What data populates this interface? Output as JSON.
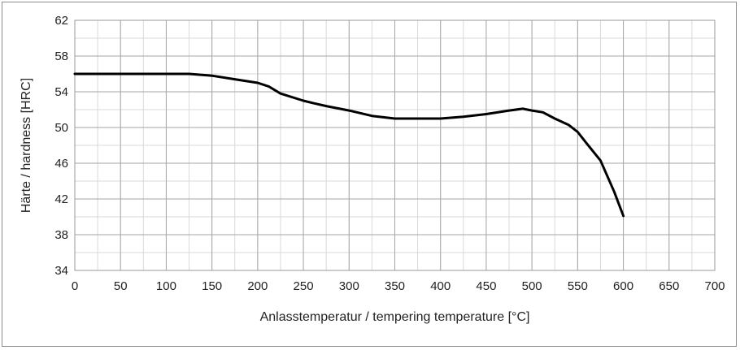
{
  "chart_data": {
    "type": "line",
    "title": "",
    "xlabel": "Anlasstemperatur / tempering temperature [°C]",
    "ylabel": "Härte / hardness [HRC]",
    "xlim": [
      0,
      700
    ],
    "ylim": [
      34,
      62
    ],
    "xticks": [
      0,
      50,
      100,
      150,
      200,
      250,
      300,
      350,
      400,
      450,
      500,
      550,
      600,
      650,
      700
    ],
    "yticks": [
      34,
      38,
      42,
      46,
      50,
      54,
      58,
      62
    ],
    "xtick_labels": [
      "0",
      "50",
      "100",
      "150",
      "200",
      "250",
      "300",
      "350",
      "400",
      "450",
      "500",
      "550",
      "600",
      "650",
      "700"
    ],
    "ytick_labels": [
      "34",
      "38",
      "42",
      "46",
      "50",
      "54",
      "58",
      "62"
    ],
    "x_minor_step": 25,
    "y_minor_step": 2,
    "grid": true,
    "line_color": "#000000",
    "series": [
      {
        "x": [
          0,
          50,
          100,
          125,
          150,
          175,
          200,
          212,
          225,
          250,
          262,
          275,
          300,
          325,
          350,
          375,
          400,
          425,
          450,
          475,
          490,
          500,
          512,
          525,
          540,
          550,
          560,
          575,
          590,
          600
        ],
        "y": [
          56.0,
          56.0,
          56.0,
          56.0,
          55.8,
          55.4,
          55.0,
          54.6,
          53.8,
          53.0,
          52.7,
          52.4,
          51.9,
          51.3,
          51.0,
          51.0,
          51.0,
          51.2,
          51.5,
          51.9,
          52.1,
          51.9,
          51.7,
          51.0,
          50.3,
          49.5,
          48.2,
          46.3,
          42.8,
          40.1
        ]
      }
    ]
  }
}
